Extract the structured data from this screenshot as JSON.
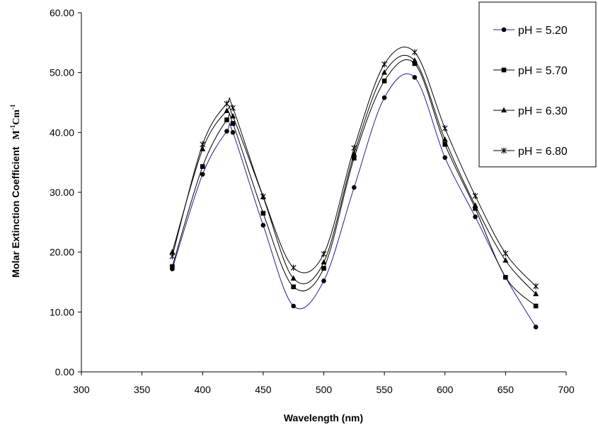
{
  "chart_data": {
    "type": "line",
    "title": "",
    "xlabel": "Wavelength (nm)",
    "ylabel": "Molar Extinction Coefficient",
    "ylabel_unit": {
      "base": "M",
      "sup1": "-1",
      "mid": "Cm",
      "sup2": "-1"
    },
    "xlim": [
      300,
      700
    ],
    "ylim": [
      0,
      60
    ],
    "x_ticks": [
      "300",
      "350",
      "400",
      "450",
      "500",
      "550",
      "600",
      "650",
      "700"
    ],
    "y_ticks": [
      "0.00",
      "10.00",
      "20.00",
      "30.00",
      "40.00",
      "50.00",
      "60.00"
    ],
    "grid": false,
    "legend_position": "top-right",
    "x": [
      375,
      400,
      420,
      425,
      450,
      475,
      500,
      525,
      550,
      575,
      600,
      625,
      650,
      675
    ],
    "series": [
      {
        "name": "pH = 5.20",
        "marker": "circle",
        "values": [
          17.2,
          33.0,
          40.2,
          40.0,
          24.5,
          11.0,
          15.2,
          30.8,
          45.8,
          49.2,
          35.8,
          25.9,
          15.8,
          7.5
        ]
      },
      {
        "name": "pH = 5.70",
        "marker": "square",
        "values": [
          17.6,
          34.3,
          42.1,
          41.5,
          26.5,
          14.2,
          17.3,
          35.7,
          48.6,
          51.5,
          38.0,
          27.3,
          15.8,
          11.0
        ]
      },
      {
        "name": "pH = 6.30",
        "marker": "triangle",
        "values": [
          20.0,
          37.2,
          43.6,
          42.7,
          29.2,
          15.6,
          18.3,
          36.4,
          50.0,
          52.0,
          38.8,
          27.8,
          18.6,
          13.0
        ]
      },
      {
        "name": "pH = 6.80",
        "marker": "star",
        "values": [
          19.3,
          38.0,
          44.8,
          44.1,
          29.3,
          17.4,
          19.7,
          37.4,
          51.4,
          53.4,
          40.7,
          29.4,
          19.8,
          14.3
        ]
      }
    ]
  }
}
